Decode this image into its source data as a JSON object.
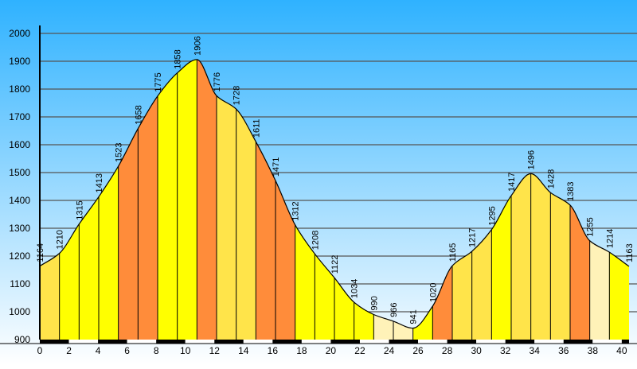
{
  "chart_data": {
    "type": "area",
    "x": [
      0,
      1.35,
      2.7,
      4.05,
      5.4,
      6.75,
      8.1,
      9.45,
      10.8,
      12.15,
      13.5,
      14.85,
      16.2,
      17.55,
      18.9,
      20.25,
      21.6,
      22.95,
      24.3,
      25.65,
      27.0,
      28.35,
      29.7,
      31.05,
      32.4,
      33.75,
      35.1,
      36.45,
      37.8,
      39.15,
      40.5
    ],
    "values": [
      1164,
      1210,
      1315,
      1413,
      1523,
      1658,
      1775,
      1858,
      1906,
      1776,
      1728,
      1611,
      1471,
      1312,
      1208,
      1122,
      1034,
      990,
      966,
      941,
      1020,
      1165,
      1217,
      1295,
      1417,
      1496,
      1428,
      1383,
      1255,
      1214,
      1163
    ],
    "point_labels": [
      "1164",
      "1210",
      "1315",
      "1413",
      "1523",
      "1658",
      "1775",
      "1858",
      "1906",
      "1776",
      "1728",
      "1611",
      "1471",
      "1312",
      "1208",
      "1122",
      "1034",
      "990",
      "966",
      "941",
      "1020",
      "1165",
      "1217",
      "1295",
      "1417",
      "1496",
      "1428",
      "1383",
      "1255",
      "1214",
      "1163"
    ],
    "segment_colors": [
      "#FFE44A",
      "#FFFF00",
      "#FFFF00",
      "#FFFF00",
      "#FF8C3A",
      "#FF8C3A",
      "#FFFF00",
      "#FFFF00",
      "#FF8C3A",
      "#FFE44A",
      "#FFE44A",
      "#FF8C3A",
      "#FF8C3A",
      "#FFFF00",
      "#FFFF00",
      "#FFFF00",
      "#FFFF00",
      "#FFF2B8",
      "#FFF2B8",
      "#FFFF00",
      "#FF8C3A",
      "#FFE44A",
      "#FFE44A",
      "#FFFF00",
      "#FFE44A",
      "#FFE44A",
      "#FFE44A",
      "#FF8C3A",
      "#FFF2B8",
      "#FFFF00"
    ],
    "xlim": [
      0,
      40.5
    ],
    "ylim": [
      900,
      2000
    ],
    "x_ticks": [
      0,
      2,
      4,
      6,
      8,
      10,
      12,
      14,
      16,
      18,
      20,
      22,
      24,
      26,
      28,
      30,
      32,
      34,
      36,
      38,
      40
    ],
    "x_tick_labels": [
      "0",
      "2",
      "4",
      "6",
      "8",
      "10",
      "12",
      "14",
      "16",
      "18",
      "20",
      "22",
      "24",
      "26",
      "28",
      "30",
      "32",
      "34",
      "36",
      "38",
      "40"
    ],
    "y_ticks": [
      900,
      1000,
      1100,
      1200,
      1300,
      1400,
      1500,
      1600,
      1700,
      1800,
      1900,
      2000
    ],
    "y_tick_labels": [
      "900",
      "1000",
      "1100",
      "1200",
      "1300",
      "1400",
      "1500",
      "1600",
      "1700",
      "1800",
      "1900",
      "2000"
    ],
    "grid": true,
    "title": "",
    "xlabel": "",
    "ylabel": ""
  },
  "colors": {
    "background_top": "#2FB2FF",
    "background_bottom": "#FFFFFF",
    "grid": "#555555",
    "outline": "#000000"
  }
}
